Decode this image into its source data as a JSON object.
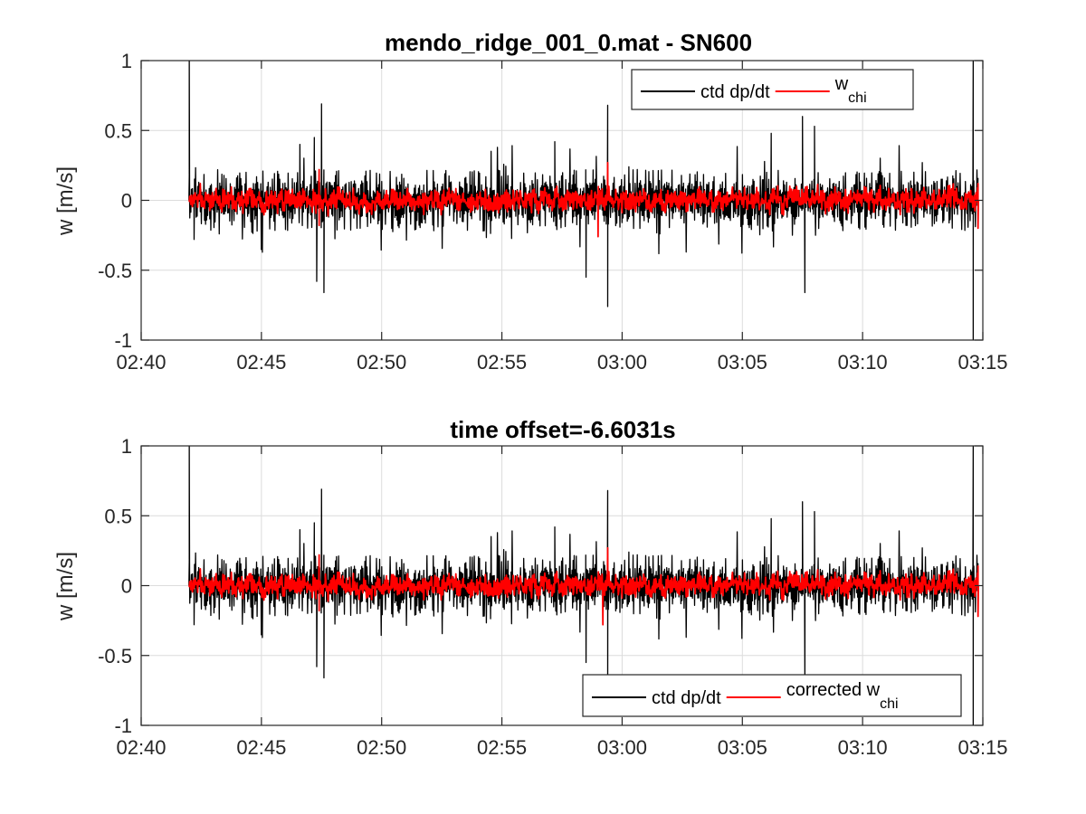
{
  "colors": {
    "ctd": "#000000",
    "wchi": "#ff0000",
    "grid": "#dcdcdc",
    "axis": "#262626",
    "background": "#ffffff"
  },
  "chart_data": [
    {
      "type": "line",
      "title": "mendo_ridge_001_0.mat - SN600",
      "xlabel": "",
      "ylabel": "w [m/s]",
      "x_range": [
        "02:40",
        "03:15"
      ],
      "ylim": [
        -1,
        1
      ],
      "x_ticks": [
        "02:40",
        "02:45",
        "02:50",
        "02:55",
        "03:00",
        "03:05",
        "03:10",
        "03:15"
      ],
      "y_ticks": [
        "-1",
        "-0.5",
        "0",
        "0.5",
        "1"
      ],
      "y_tick_values": [
        -1,
        -0.5,
        0,
        0.5,
        1
      ],
      "grid": true,
      "legend_placement": "top-right",
      "legend": {
        "entries": [
          {
            "label": "ctd dp/dt",
            "sub": ""
          },
          {
            "label": "w",
            "sub": "chi"
          }
        ]
      },
      "series": [
        {
          "name": "ctd dp/dt",
          "color": "#000000",
          "x_start": "02:42",
          "x_end": "03:14.8",
          "typical_amplitude": 0.22,
          "notable_points": [
            {
              "x": "02:42.0",
              "y": 1.0
            },
            {
              "x": "02:42.2",
              "y": -0.28
            },
            {
              "x": "02:46.6",
              "y": 0.4
            },
            {
              "x": "02:47.2",
              "y": 0.45
            },
            {
              "x": "02:47.5",
              "y": 0.69
            },
            {
              "x": "02:47.3",
              "y": -0.58
            },
            {
              "x": "02:47.6",
              "y": -0.66
            },
            {
              "x": "02:57.2",
              "y": 0.42
            },
            {
              "x": "02:58.5",
              "y": -0.55
            },
            {
              "x": "02:59.4",
              "y": 0.68
            },
            {
              "x": "02:59.4",
              "y": -0.76
            },
            {
              "x": "03:06.2",
              "y": 0.48
            },
            {
              "x": "03:07.5",
              "y": 0.6
            },
            {
              "x": "03:07.6",
              "y": -0.66
            },
            {
              "x": "03:08.0",
              "y": 0.53
            },
            {
              "x": "03:14.6",
              "y": 1.0
            },
            {
              "x": "03:14.6",
              "y": -1.0
            }
          ]
        },
        {
          "name": "w_chi",
          "color": "#ff0000",
          "x_start": "02:42",
          "x_end": "03:14.8",
          "typical_amplitude": 0.09,
          "notable_points": [
            {
              "x": "02:47.4",
              "y": 0.22
            },
            {
              "x": "02:47.4",
              "y": -0.18
            },
            {
              "x": "02:59.0",
              "y": -0.26
            },
            {
              "x": "02:59.4",
              "y": 0.27
            },
            {
              "x": "03:14.8",
              "y": 0.12
            },
            {
              "x": "03:14.8",
              "y": -0.2
            }
          ]
        }
      ]
    },
    {
      "type": "line",
      "title": "time offset=-6.6031s",
      "xlabel": "",
      "ylabel": "w [m/s]",
      "x_range": [
        "02:40",
        "03:15"
      ],
      "ylim": [
        -1,
        1
      ],
      "x_ticks": [
        "02:40",
        "02:45",
        "02:50",
        "02:55",
        "03:00",
        "03:05",
        "03:10",
        "03:15"
      ],
      "y_ticks": [
        "-1",
        "-0.5",
        "0",
        "0.5",
        "1"
      ],
      "y_tick_values": [
        -1,
        -0.5,
        0,
        0.5,
        1
      ],
      "grid": true,
      "legend_placement": "bottom-right",
      "legend": {
        "entries": [
          {
            "label": "ctd dp/dt",
            "sub": ""
          },
          {
            "label": "corrected w",
            "sub": "chi"
          }
        ]
      },
      "series": [
        {
          "name": "ctd dp/dt",
          "color": "#000000",
          "x_start": "02:42",
          "x_end": "03:14.8",
          "typical_amplitude": 0.22,
          "notable_points": [
            {
              "x": "02:42.0",
              "y": 1.0
            },
            {
              "x": "02:42.2",
              "y": -0.28
            },
            {
              "x": "02:46.6",
              "y": 0.4
            },
            {
              "x": "02:47.2",
              "y": 0.45
            },
            {
              "x": "02:47.5",
              "y": 0.69
            },
            {
              "x": "02:47.3",
              "y": -0.58
            },
            {
              "x": "02:47.6",
              "y": -0.66
            },
            {
              "x": "02:57.2",
              "y": 0.42
            },
            {
              "x": "02:58.5",
              "y": -0.55
            },
            {
              "x": "02:59.4",
              "y": 0.68
            },
            {
              "x": "02:59.4",
              "y": -0.76
            },
            {
              "x": "03:06.2",
              "y": 0.48
            },
            {
              "x": "03:07.5",
              "y": 0.6
            },
            {
              "x": "03:07.6",
              "y": -0.66
            },
            {
              "x": "03:08.0",
              "y": 0.53
            },
            {
              "x": "03:14.6",
              "y": 1.0
            },
            {
              "x": "03:14.6",
              "y": -1.0
            }
          ]
        },
        {
          "name": "corrected w_chi",
          "color": "#ff0000",
          "x_start": "02:42",
          "x_end": "03:14.8",
          "typical_amplitude": 0.09,
          "notable_points": [
            {
              "x": "02:47.4",
              "y": 0.22
            },
            {
              "x": "02:47.4",
              "y": -0.18
            },
            {
              "x": "02:59.2",
              "y": -0.28
            },
            {
              "x": "02:59.4",
              "y": 0.27
            },
            {
              "x": "03:14.8",
              "y": 0.14
            },
            {
              "x": "03:14.8",
              "y": -0.22
            }
          ]
        }
      ]
    }
  ]
}
